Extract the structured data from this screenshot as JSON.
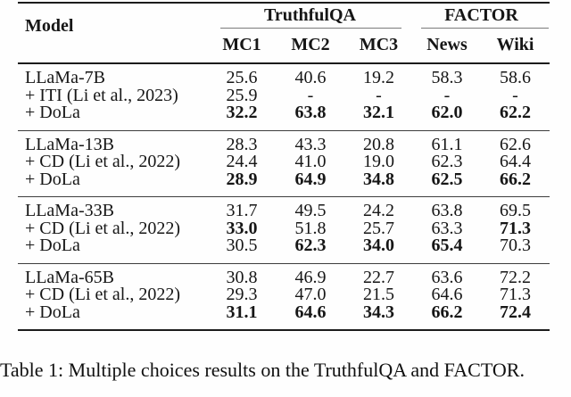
{
  "table": {
    "caption": "Table 1: Multiple choices results on the TruthfulQA and FACTOR.",
    "header": {
      "model": "Model",
      "col_groups": [
        {
          "label": "TruthfulQA",
          "cols": [
            "MC1",
            "MC2",
            "MC3"
          ]
        },
        {
          "label": "FACTOR",
          "cols": [
            "News",
            "Wiki"
          ]
        }
      ]
    },
    "groups": [
      {
        "rows": [
          {
            "label": "LLaMa-7B",
            "values": [
              "25.6",
              "40.6",
              "19.2",
              "58.3",
              "58.6"
            ],
            "bold": [
              false,
              false,
              false,
              false,
              false
            ]
          },
          {
            "label": "+ ITI (Li et al., 2023)",
            "values": [
              "25.9",
              "-",
              "-",
              "-",
              "-"
            ],
            "bold": [
              false,
              false,
              false,
              false,
              false
            ]
          },
          {
            "label": "+ DoLa",
            "values": [
              "32.2",
              "63.8",
              "32.1",
              "62.0",
              "62.2"
            ],
            "bold": [
              true,
              true,
              true,
              true,
              true
            ]
          }
        ]
      },
      {
        "rows": [
          {
            "label": "LLaMa-13B",
            "values": [
              "28.3",
              "43.3",
              "20.8",
              "61.1",
              "62.6"
            ],
            "bold": [
              false,
              false,
              false,
              false,
              false
            ]
          },
          {
            "label": "+ CD (Li et al., 2022)",
            "values": [
              "24.4",
              "41.0",
              "19.0",
              "62.3",
              "64.4"
            ],
            "bold": [
              false,
              false,
              false,
              false,
              false
            ]
          },
          {
            "label": "+ DoLa",
            "values": [
              "28.9",
              "64.9",
              "34.8",
              "62.5",
              "66.2"
            ],
            "bold": [
              true,
              true,
              true,
              true,
              true
            ]
          }
        ]
      },
      {
        "rows": [
          {
            "label": "LLaMa-33B",
            "values": [
              "31.7",
              "49.5",
              "24.2",
              "63.8",
              "69.5"
            ],
            "bold": [
              false,
              false,
              false,
              false,
              false
            ]
          },
          {
            "label": "+ CD (Li et al., 2022)",
            "values": [
              "33.0",
              "51.8",
              "25.7",
              "63.3",
              "71.3"
            ],
            "bold": [
              true,
              false,
              false,
              false,
              true
            ]
          },
          {
            "label": "+ DoLa",
            "values": [
              "30.5",
              "62.3",
              "34.0",
              "65.4",
              "70.3"
            ],
            "bold": [
              false,
              true,
              true,
              true,
              false
            ]
          }
        ]
      },
      {
        "rows": [
          {
            "label": "LLaMa-65B",
            "values": [
              "30.8",
              "46.9",
              "22.7",
              "63.6",
              "72.2"
            ],
            "bold": [
              false,
              false,
              false,
              false,
              false
            ]
          },
          {
            "label": "+ CD (Li et al., 2022)",
            "values": [
              "29.3",
              "47.0",
              "21.5",
              "64.6",
              "71.3"
            ],
            "bold": [
              false,
              false,
              false,
              false,
              false
            ]
          },
          {
            "label": "+ DoLa",
            "values": [
              "31.1",
              "64.6",
              "34.3",
              "66.2",
              "72.4"
            ],
            "bold": [
              true,
              true,
              true,
              true,
              true
            ]
          }
        ]
      }
    ]
  }
}
